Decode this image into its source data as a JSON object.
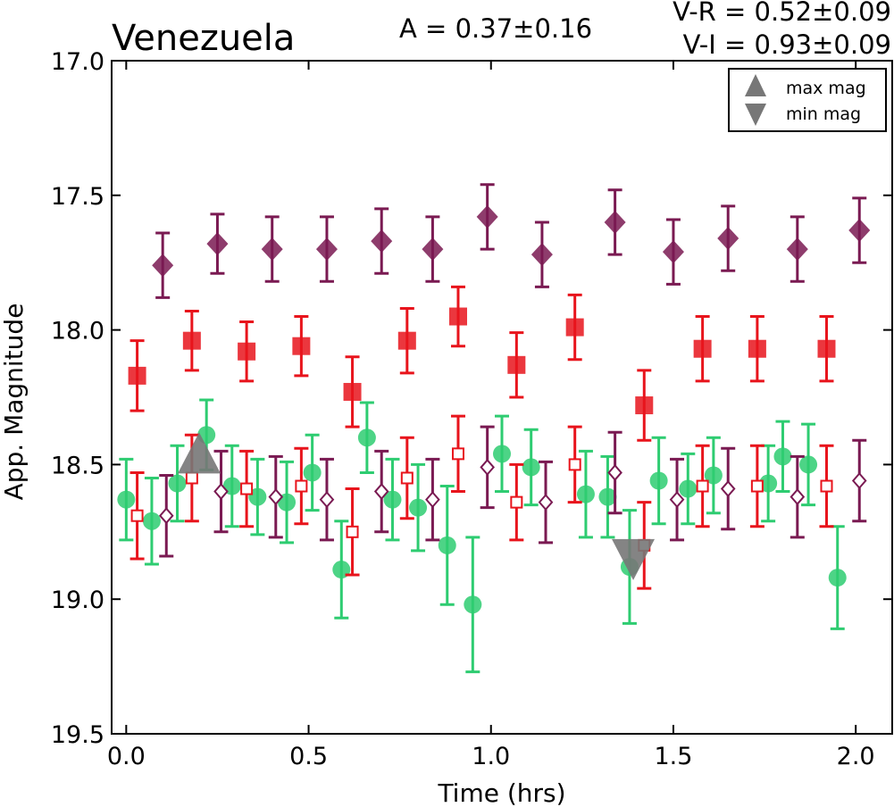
{
  "chart_data": {
    "type": "scatter",
    "title": "Venezuela",
    "annotations": {
      "amplitude": "A  = 0.37±0.16",
      "v_r": "V-R = 0.52±0.09",
      "v_i": "V-I  = 0.93±0.09"
    },
    "xlabel": "Time (hrs)",
    "ylabel": "App. Magnitude",
    "xlim": [
      -0.04,
      2.1
    ],
    "ylim": [
      19.5,
      17.0
    ],
    "y_inverted": true,
    "grid": false,
    "xticks": [
      0.0,
      0.5,
      1.0,
      1.5,
      2.0
    ],
    "xtick_labels": [
      "0.0",
      "0.5",
      "1.0",
      "1.5",
      "2.0"
    ],
    "yticks": [
      17.0,
      17.5,
      18.0,
      18.5,
      19.0,
      19.5
    ],
    "ytick_labels": [
      "17.0",
      "17.5",
      "18.0",
      "18.5",
      "19.0",
      "19.5"
    ],
    "legend_position": "top-right",
    "legend": [
      {
        "label": "max mag",
        "marker": "triangle-up"
      },
      {
        "label": "min mag",
        "marker": "triangle-down"
      }
    ],
    "colors": {
      "v_green": "#2ecc71",
      "r_red": "#e8141c",
      "i_purple": "#7a1a52",
      "extremum_gray": "#777777"
    },
    "series": [
      {
        "marker": "diamond-filled",
        "color": "#7a1a52",
        "points": [
          {
            "x": 0.1,
            "y": 17.76,
            "err": 0.12
          },
          {
            "x": 0.25,
            "y": 17.68,
            "err": 0.11
          },
          {
            "x": 0.4,
            "y": 17.7,
            "err": 0.12
          },
          {
            "x": 0.55,
            "y": 17.7,
            "err": 0.12
          },
          {
            "x": 0.7,
            "y": 17.67,
            "err": 0.12
          },
          {
            "x": 0.84,
            "y": 17.7,
            "err": 0.12
          },
          {
            "x": 0.99,
            "y": 17.58,
            "err": 0.12
          },
          {
            "x": 1.14,
            "y": 17.72,
            "err": 0.12
          },
          {
            "x": 1.34,
            "y": 17.6,
            "err": 0.12
          },
          {
            "x": 1.5,
            "y": 17.71,
            "err": 0.12
          },
          {
            "x": 1.65,
            "y": 17.66,
            "err": 0.12
          },
          {
            "x": 1.84,
            "y": 17.7,
            "err": 0.12
          },
          {
            "x": 2.01,
            "y": 17.63,
            "err": 0.12
          }
        ]
      },
      {
        "marker": "square-filled",
        "color": "#e8141c",
        "points": [
          {
            "x": 0.03,
            "y": 18.17,
            "err": 0.13
          },
          {
            "x": 0.18,
            "y": 18.04,
            "err": 0.11
          },
          {
            "x": 0.33,
            "y": 18.08,
            "err": 0.11
          },
          {
            "x": 0.48,
            "y": 18.06,
            "err": 0.11
          },
          {
            "x": 0.62,
            "y": 18.23,
            "err": 0.13
          },
          {
            "x": 0.77,
            "y": 18.04,
            "err": 0.12
          },
          {
            "x": 0.91,
            "y": 17.95,
            "err": 0.11
          },
          {
            "x": 1.07,
            "y": 18.13,
            "err": 0.12
          },
          {
            "x": 1.23,
            "y": 17.99,
            "err": 0.12
          },
          {
            "x": 1.42,
            "y": 18.28,
            "err": 0.13
          },
          {
            "x": 1.58,
            "y": 18.07,
            "err": 0.12
          },
          {
            "x": 1.73,
            "y": 18.07,
            "err": 0.12
          },
          {
            "x": 1.92,
            "y": 18.07,
            "err": 0.12
          }
        ]
      },
      {
        "marker": "circle-filled",
        "color": "#2ecc71",
        "points": [
          {
            "x": 0.0,
            "y": 18.63,
            "err": 0.15
          },
          {
            "x": 0.07,
            "y": 18.71,
            "err": 0.16
          },
          {
            "x": 0.14,
            "y": 18.57,
            "err": 0.14
          },
          {
            "x": 0.22,
            "y": 18.39,
            "err": 0.13
          },
          {
            "x": 0.29,
            "y": 18.58,
            "err": 0.15
          },
          {
            "x": 0.36,
            "y": 18.62,
            "err": 0.14
          },
          {
            "x": 0.44,
            "y": 18.64,
            "err": 0.15
          },
          {
            "x": 0.51,
            "y": 18.53,
            "err": 0.14
          },
          {
            "x": 0.59,
            "y": 18.89,
            "err": 0.18
          },
          {
            "x": 0.66,
            "y": 18.4,
            "err": 0.13
          },
          {
            "x": 0.73,
            "y": 18.63,
            "err": 0.15
          },
          {
            "x": 0.8,
            "y": 18.66,
            "err": 0.16
          },
          {
            "x": 0.88,
            "y": 18.8,
            "err": 0.22
          },
          {
            "x": 0.95,
            "y": 19.02,
            "err": 0.25
          },
          {
            "x": 1.03,
            "y": 18.46,
            "err": 0.14
          },
          {
            "x": 1.11,
            "y": 18.51,
            "err": 0.14
          },
          {
            "x": 1.26,
            "y": 18.61,
            "err": 0.16
          },
          {
            "x": 1.32,
            "y": 18.62,
            "err": 0.15
          },
          {
            "x": 1.38,
            "y": 18.88,
            "err": 0.21
          },
          {
            "x": 1.46,
            "y": 18.56,
            "err": 0.16
          },
          {
            "x": 1.54,
            "y": 18.59,
            "err": 0.13
          },
          {
            "x": 1.61,
            "y": 18.54,
            "err": 0.14
          },
          {
            "x": 1.76,
            "y": 18.57,
            "err": 0.14
          },
          {
            "x": 1.8,
            "y": 18.47,
            "err": 0.13
          },
          {
            "x": 1.87,
            "y": 18.5,
            "err": 0.15
          },
          {
            "x": 1.95,
            "y": 18.92,
            "err": 0.19
          }
        ]
      },
      {
        "marker": "square-open",
        "color": "#e8141c",
        "points": [
          {
            "x": 0.03,
            "y": 18.69,
            "err": 0.16
          },
          {
            "x": 0.18,
            "y": 18.55,
            "err": 0.16
          },
          {
            "x": 0.33,
            "y": 18.59,
            "err": 0.14
          },
          {
            "x": 0.48,
            "y": 18.58,
            "err": 0.14
          },
          {
            "x": 0.62,
            "y": 18.75,
            "err": 0.16
          },
          {
            "x": 0.77,
            "y": 18.55,
            "err": 0.15
          },
          {
            "x": 0.91,
            "y": 18.46,
            "err": 0.14
          },
          {
            "x": 1.07,
            "y": 18.64,
            "err": 0.14
          },
          {
            "x": 1.23,
            "y": 18.5,
            "err": 0.14
          },
          {
            "x": 1.42,
            "y": 18.8,
            "err": 0.16
          },
          {
            "x": 1.58,
            "y": 18.58,
            "err": 0.15
          },
          {
            "x": 1.73,
            "y": 18.58,
            "err": 0.15
          },
          {
            "x": 1.92,
            "y": 18.58,
            "err": 0.15
          }
        ]
      },
      {
        "marker": "diamond-open",
        "color": "#7a1a52",
        "points": [
          {
            "x": 0.11,
            "y": 18.69,
            "err": 0.15
          },
          {
            "x": 0.26,
            "y": 18.6,
            "err": 0.15
          },
          {
            "x": 0.41,
            "y": 18.62,
            "err": 0.15
          },
          {
            "x": 0.55,
            "y": 18.63,
            "err": 0.15
          },
          {
            "x": 0.7,
            "y": 18.6,
            "err": 0.15
          },
          {
            "x": 0.84,
            "y": 18.63,
            "err": 0.15
          },
          {
            "x": 0.99,
            "y": 18.51,
            "err": 0.15
          },
          {
            "x": 1.15,
            "y": 18.64,
            "err": 0.15
          },
          {
            "x": 1.34,
            "y": 18.53,
            "err": 0.15
          },
          {
            "x": 1.51,
            "y": 18.63,
            "err": 0.15
          },
          {
            "x": 1.65,
            "y": 18.59,
            "err": 0.15
          },
          {
            "x": 1.84,
            "y": 18.62,
            "err": 0.15
          },
          {
            "x": 2.01,
            "y": 18.56,
            "err": 0.15
          }
        ]
      }
    ],
    "extrema": [
      {
        "kind": "max",
        "marker": "triangle-up",
        "color": "#777777",
        "x": 0.2,
        "y": 18.48
      },
      {
        "kind": "min",
        "marker": "triangle-down",
        "color": "#777777",
        "x": 1.39,
        "y": 18.83
      }
    ]
  }
}
